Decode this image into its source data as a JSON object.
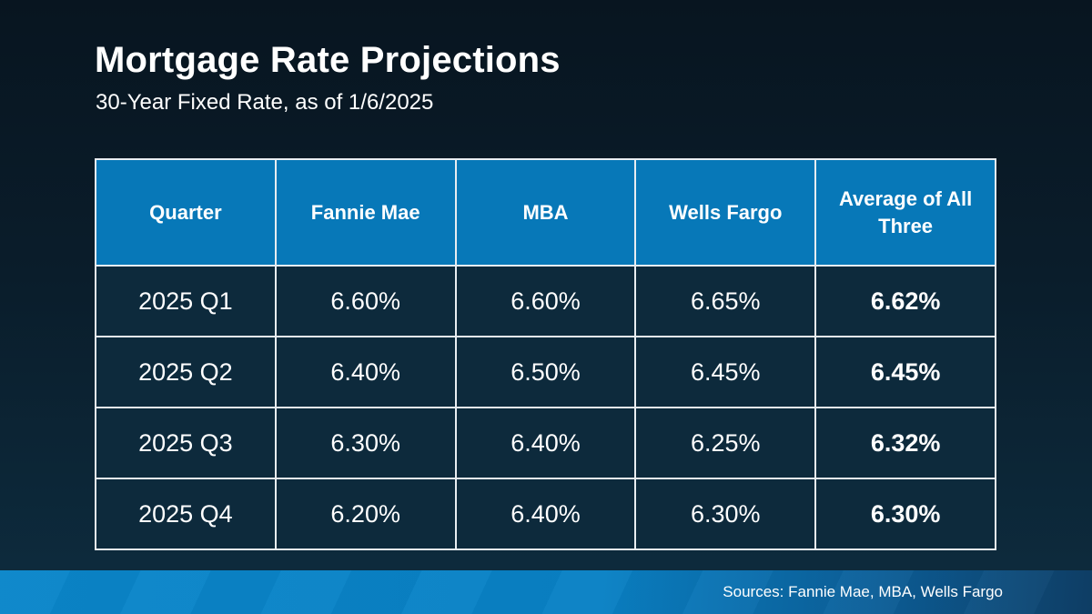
{
  "header": {
    "title": "Mortgage Rate Projections",
    "subtitle": "30-Year Fixed Rate, as of 1/6/2025"
  },
  "chart_data": {
    "type": "table",
    "title": "Mortgage Rate Projections",
    "subtitle": "30-Year Fixed Rate, as of 1/6/2025",
    "columns": [
      "Quarter",
      "Fannie Mae",
      "MBA",
      "Wells Fargo",
      "Average of All Three"
    ],
    "rows": [
      [
        "2025 Q1",
        "6.60%",
        "6.60%",
        "6.65%",
        "6.62%"
      ],
      [
        "2025 Q2",
        "6.40%",
        "6.50%",
        "6.45%",
        "6.45%"
      ],
      [
        "2025 Q3",
        "6.30%",
        "6.40%",
        "6.25%",
        "6.32%"
      ],
      [
        "2025 Q4",
        "6.20%",
        "6.40%",
        "6.30%",
        "6.30%"
      ]
    ],
    "categories": [
      "2025 Q1",
      "2025 Q2",
      "2025 Q3",
      "2025 Q4"
    ],
    "series": [
      {
        "name": "Fannie Mae",
        "values": [
          6.6,
          6.4,
          6.3,
          6.2
        ]
      },
      {
        "name": "MBA",
        "values": [
          6.6,
          6.5,
          6.4,
          6.4
        ]
      },
      {
        "name": "Wells Fargo",
        "values": [
          6.65,
          6.45,
          6.25,
          6.3
        ]
      },
      {
        "name": "Average of All Three",
        "values": [
          6.62,
          6.45,
          6.32,
          6.3
        ]
      }
    ],
    "value_unit": "%"
  },
  "footer": {
    "sources": "Sources: Fannie Mae, MBA, Wells Fargo"
  },
  "colors": {
    "background_top": "#081520",
    "background_bottom": "#0e2c3e",
    "table_header_blue": "#0778b8",
    "table_cell_navy": "#0d2a3c",
    "table_border": "#e8edf1",
    "footer_blue_left": "#0a86ca",
    "footer_blue_right": "#0e3f67",
    "text": "#ffffff"
  }
}
